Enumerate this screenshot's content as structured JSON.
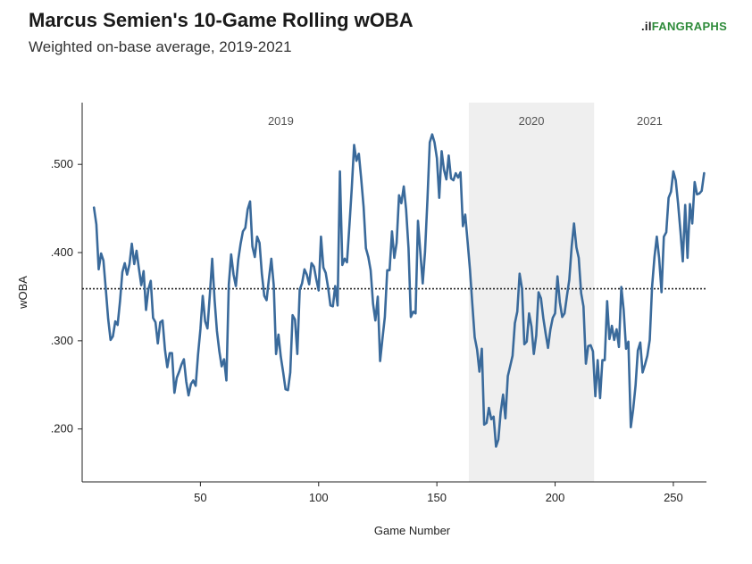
{
  "logo": {
    "text": "FANGRAPHS",
    "mark": ".il"
  },
  "chart_data": {
    "type": "line",
    "title": "Marcus Semien's 10-Game Rolling wOBA",
    "subtitle": "Weighted on-base average, 2019-2021",
    "xlabel": "Game Number",
    "ylabel": "wOBA",
    "xlim": [
      0,
      264
    ],
    "ylim": [
      0.14,
      0.57
    ],
    "x_ticks": [
      50,
      100,
      150,
      200,
      250
    ],
    "y_ticks": [
      0.2,
      0.3,
      0.4,
      0.5
    ],
    "y_tick_labels": [
      ".200",
      ".300",
      ".400",
      ".500"
    ],
    "reference_line": {
      "y": 0.359,
      "style": "dotted"
    },
    "shaded_region": {
      "x": [
        163.5,
        216.5
      ],
      "label": "2020"
    },
    "season_labels": [
      {
        "label": "2019",
        "x": 84
      },
      {
        "label": "2020",
        "x": 190
      },
      {
        "label": "2021",
        "x": 240
      }
    ],
    "grid": false,
    "series": [
      {
        "color": "#3a6a9b",
        "x_start": 5,
        "values": [
          0.451,
          0.432,
          0.381,
          0.399,
          0.391,
          0.358,
          0.325,
          0.301,
          0.305,
          0.322,
          0.318,
          0.345,
          0.378,
          0.388,
          0.375,
          0.387,
          0.41,
          0.387,
          0.402,
          0.382,
          0.363,
          0.379,
          0.335,
          0.358,
          0.368,
          0.326,
          0.321,
          0.297,
          0.321,
          0.323,
          0.29,
          0.27,
          0.286,
          0.286,
          0.241,
          0.258,
          0.265,
          0.273,
          0.279,
          0.254,
          0.238,
          0.251,
          0.255,
          0.249,
          0.284,
          0.313,
          0.351,
          0.322,
          0.314,
          0.353,
          0.393,
          0.346,
          0.311,
          0.288,
          0.271,
          0.279,
          0.255,
          0.364,
          0.398,
          0.375,
          0.362,
          0.392,
          0.41,
          0.424,
          0.428,
          0.449,
          0.458,
          0.407,
          0.395,
          0.418,
          0.411,
          0.376,
          0.351,
          0.346,
          0.371,
          0.393,
          0.363,
          0.285,
          0.307,
          0.282,
          0.264,
          0.245,
          0.244,
          0.264,
          0.329,
          0.324,
          0.285,
          0.358,
          0.365,
          0.381,
          0.375,
          0.364,
          0.388,
          0.384,
          0.37,
          0.357,
          0.418,
          0.383,
          0.377,
          0.36,
          0.34,
          0.339,
          0.362,
          0.34,
          0.492,
          0.386,
          0.393,
          0.389,
          0.43,
          0.472,
          0.522,
          0.504,
          0.512,
          0.484,
          0.452,
          0.405,
          0.395,
          0.38,
          0.342,
          0.323,
          0.35,
          0.277,
          0.303,
          0.327,
          0.38,
          0.38,
          0.424,
          0.394,
          0.411,
          0.465,
          0.456,
          0.475,
          0.449,
          0.405,
          0.327,
          0.333,
          0.331,
          0.436,
          0.401,
          0.365,
          0.401,
          0.46,
          0.525,
          0.534,
          0.525,
          0.507,
          0.462,
          0.515,
          0.494,
          0.483,
          0.51,
          0.484,
          0.482,
          0.49,
          0.485,
          0.491,
          0.43,
          0.443,
          0.412,
          0.381,
          0.341,
          0.304,
          0.29,
          0.265,
          0.291,
          0.205,
          0.207,
          0.224,
          0.211,
          0.214,
          0.18,
          0.188,
          0.219,
          0.239,
          0.212,
          0.26,
          0.271,
          0.283,
          0.32,
          0.333,
          0.376,
          0.359,
          0.296,
          0.299,
          0.331,
          0.316,
          0.285,
          0.306,
          0.355,
          0.348,
          0.326,
          0.308,
          0.292,
          0.313,
          0.326,
          0.331,
          0.373,
          0.344,
          0.327,
          0.331,
          0.351,
          0.369,
          0.407,
          0.433,
          0.406,
          0.394,
          0.354,
          0.339,
          0.274,
          0.294,
          0.295,
          0.288,
          0.237,
          0.278,
          0.235,
          0.278,
          0.278,
          0.345,
          0.302,
          0.317,
          0.301,
          0.313,
          0.293,
          0.361,
          0.335,
          0.291,
          0.299,
          0.202,
          0.222,
          0.249,
          0.289,
          0.298,
          0.264,
          0.273,
          0.283,
          0.301,
          0.361,
          0.395,
          0.418,
          0.394,
          0.355,
          0.418,
          0.423,
          0.462,
          0.469,
          0.492,
          0.482,
          0.456,
          0.424,
          0.39,
          0.454,
          0.394,
          0.455,
          0.433,
          0.48,
          0.466,
          0.467,
          0.47,
          0.49
        ]
      }
    ]
  }
}
